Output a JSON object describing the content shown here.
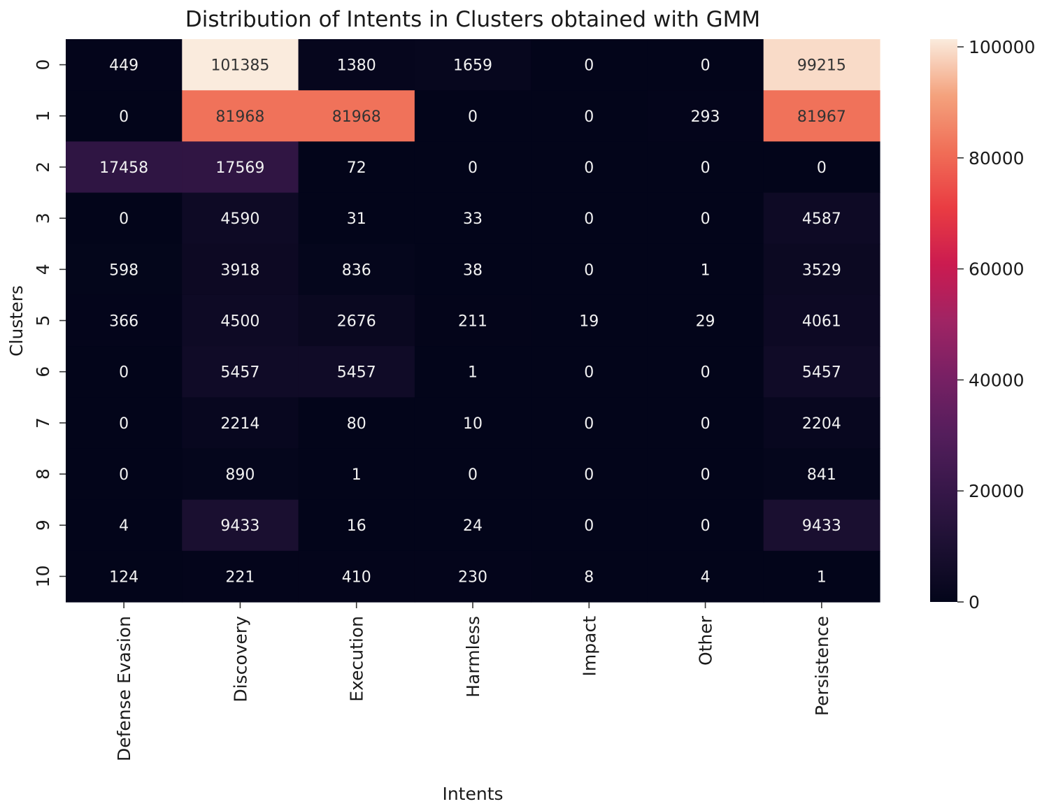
{
  "chart_data": {
    "type": "heatmap",
    "title": "Distribution of Intents in Clusters obtained with GMM",
    "xlabel": "Intents",
    "ylabel": "Clusters",
    "x_categories": [
      "Defense Evasion",
      "Discovery",
      "Execution",
      "Harmless",
      "Impact",
      "Other",
      "Persistence"
    ],
    "y_categories": [
      "0",
      "1",
      "2",
      "3",
      "4",
      "5",
      "6",
      "7",
      "8",
      "9",
      "10"
    ],
    "values": [
      [
        449,
        101385,
        1380,
        1659,
        0,
        0,
        99215
      ],
      [
        0,
        81968,
        81968,
        0,
        0,
        293,
        81967
      ],
      [
        17458,
        17569,
        72,
        0,
        0,
        0,
        0
      ],
      [
        0,
        4590,
        31,
        33,
        0,
        0,
        4587
      ],
      [
        598,
        3918,
        836,
        38,
        0,
        1,
        3529
      ],
      [
        366,
        4500,
        2676,
        211,
        19,
        29,
        4061
      ],
      [
        0,
        5457,
        5457,
        1,
        0,
        0,
        5457
      ],
      [
        0,
        2214,
        80,
        10,
        0,
        0,
        2204
      ],
      [
        0,
        890,
        1,
        0,
        0,
        0,
        841
      ],
      [
        4,
        9433,
        16,
        24,
        0,
        0,
        9433
      ],
      [
        124,
        221,
        410,
        230,
        8,
        4,
        1
      ]
    ],
    "colormap": "rocket",
    "colorbar": {
      "range": [
        0,
        101385
      ],
      "ticks": [
        0,
        20000,
        40000,
        60000,
        80000,
        100000
      ]
    },
    "annotations": "cell values shown"
  }
}
